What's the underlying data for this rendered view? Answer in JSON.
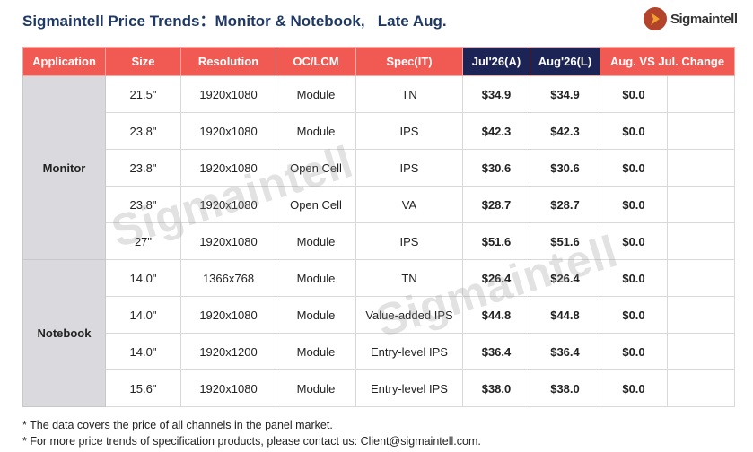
{
  "header": {
    "title": "Sigmaintell Price Trends：Monitor & Notebook,   Late Aug.",
    "logo": "Sigmaintell"
  },
  "table": {
    "columns": [
      "Application",
      "Size",
      "Resolution",
      "OC/LCM",
      "Spec(IT)",
      "Jul'26(A)",
      "Aug'26(L)",
      "Aug. VS Jul.  Change"
    ],
    "groups": [
      {
        "application": "Monitor",
        "rows": [
          [
            "21.5\"",
            "1920x1080",
            "Module",
            "TN",
            "$34.9",
            "$34.9",
            "$0.0"
          ],
          [
            "23.8\"",
            "1920x1080",
            "Module",
            "IPS",
            "$42.3",
            "$42.3",
            "$0.0"
          ],
          [
            "23.8\"",
            "1920x1080",
            "Open Cell",
            "IPS",
            "$30.6",
            "$30.6",
            "$0.0"
          ],
          [
            "23.8\"",
            "1920x1080",
            "Open Cell",
            "VA",
            "$28.7",
            "$28.7",
            "$0.0"
          ],
          [
            "27\"",
            "1920x1080",
            "Module",
            "IPS",
            "$51.6",
            "$51.6",
            "$0.0"
          ]
        ]
      },
      {
        "application": "Notebook",
        "rows": [
          [
            "14.0\"",
            "1366x768",
            "Module",
            "TN",
            "$26.4",
            "$26.4",
            "$0.0"
          ],
          [
            "14.0\"",
            "1920x1080",
            "Module",
            "Value-added IPS",
            "$44.8",
            "$44.8",
            "$0.0"
          ],
          [
            "14.0\"",
            "1920x1200",
            "Module",
            "Entry-level IPS",
            "$36.4",
            "$36.4",
            "$0.0"
          ],
          [
            "15.6\"",
            "1920x1080",
            "Module",
            "Entry-level IPS",
            "$38.0",
            "$38.0",
            "$0.0"
          ]
        ]
      }
    ]
  },
  "watermark": "Sigmaintell",
  "footnotes": [
    "* The data covers the price of all channels in the panel market.",
    "* For more price trends of specification products, please contact us: Client@sigmaintell.com."
  ]
}
